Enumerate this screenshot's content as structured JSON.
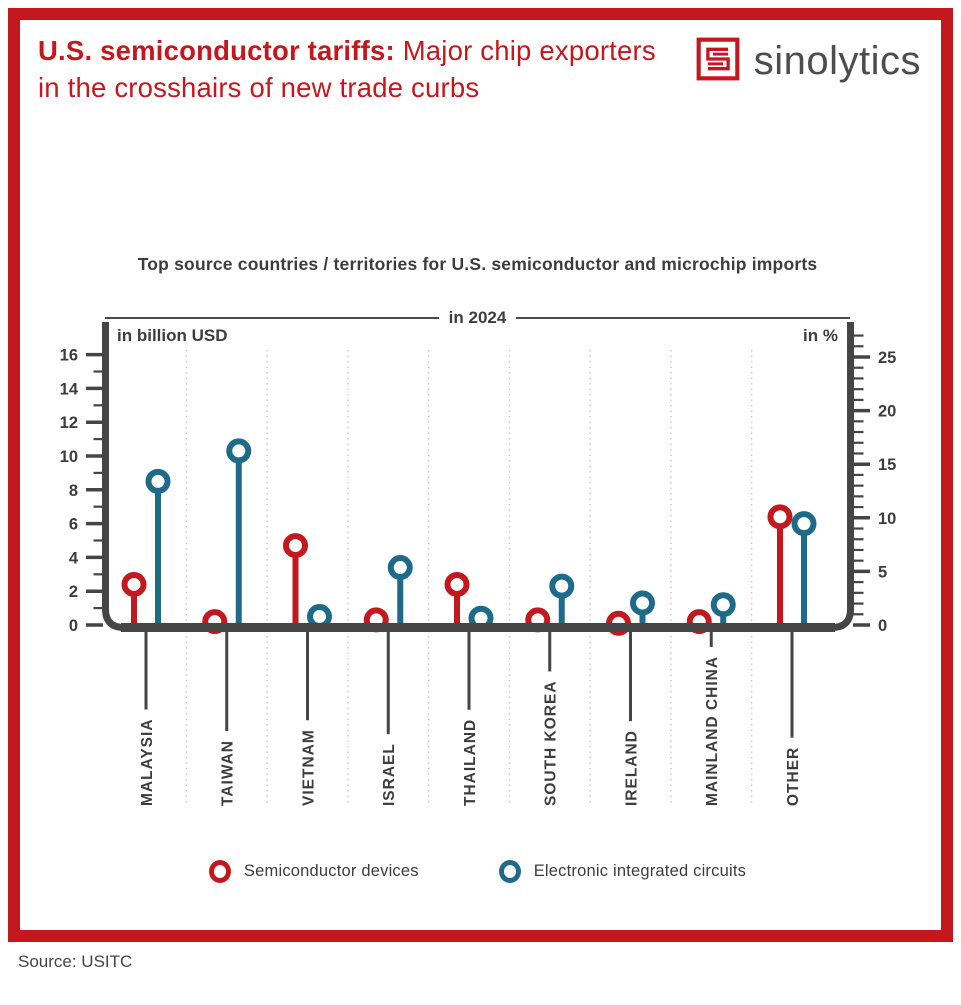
{
  "header": {
    "title_emphasis": "U.S. semiconductor tariffs:",
    "title_rest": " Major chip exporters in the crosshairs of new trade curbs",
    "brand_name": "sinolytics"
  },
  "chart_data": {
    "type": "lollipop",
    "title": "Top source countries / territories for U.S. semiconductor and microchip imports",
    "subtitle": "in 2024",
    "left_axis": {
      "label": "in billion USD",
      "min": 0,
      "max": 16,
      "major_step": 2,
      "minor_step": 1
    },
    "right_axis": {
      "label": "in %",
      "min": 0,
      "max": 25,
      "major_step": 5,
      "minor_step": 1
    },
    "axis_relation": "16 billion USD aligns with 25 %",
    "grid": "dotted vertical lines between categories",
    "legend_position": "bottom",
    "categories": [
      "MALAYSIA",
      "TAIWAN",
      "VIETNAM",
      "ISRAEL",
      "THAILAND",
      "SOUTH KOREA",
      "IRELAND",
      "MAINLAND CHINA",
      "OTHER"
    ],
    "series": [
      {
        "name": "Semiconductor devices",
        "color": "#c2181e",
        "values_billion_usd": [
          2.4,
          0.2,
          4.7,
          0.3,
          2.4,
          0.3,
          0.1,
          0.2,
          6.4
        ]
      },
      {
        "name": "Electronic integrated circuits",
        "color": "#1e6b89",
        "values_billion_usd": [
          8.5,
          10.3,
          0.5,
          3.4,
          0.4,
          2.3,
          1.3,
          1.2,
          6.0
        ]
      }
    ]
  },
  "colors": {
    "accent_red": "#c2181e",
    "accent_teal": "#1e6b89",
    "axis": "#454545",
    "text": "#3d3d3d",
    "grid": "#c9c9c9"
  },
  "icons": {
    "brand_mark": "sinolytics-s-maze-icon"
  },
  "source": "Source: USITC"
}
